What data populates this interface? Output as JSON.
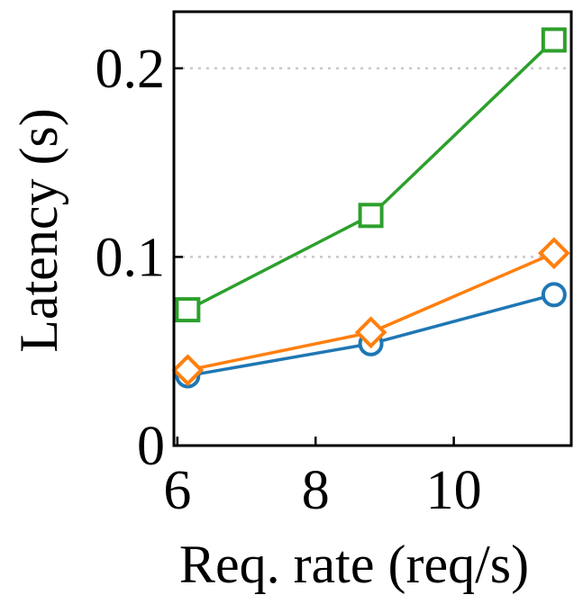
{
  "chart_data": {
    "type": "line",
    "title": "",
    "xlabel": "Req. rate (req/s)",
    "ylabel": "Latency (s)",
    "xlim": [
      5.95,
      11.7
    ],
    "ylim": [
      0,
      0.23
    ],
    "xticks": [
      6,
      8,
      10
    ],
    "xtick_labels": [
      "6",
      "8",
      "10"
    ],
    "yticks": [
      0,
      0.1,
      0.2
    ],
    "ytick_labels": [
      "0",
      "0.1",
      "0.2"
    ],
    "grid": "horizontal dotted at y ticks",
    "legend": "none",
    "series": [
      {
        "name": "series-1",
        "color": "#1f77b4",
        "marker": "circle",
        "x": [
          6.15,
          8.8,
          11.45
        ],
        "y": [
          0.037,
          0.054,
          0.08
        ]
      },
      {
        "name": "series-2",
        "color": "#ff7f0e",
        "marker": "diamond",
        "x": [
          6.15,
          8.8,
          11.45
        ],
        "y": [
          0.04,
          0.06,
          0.102
        ]
      },
      {
        "name": "series-3",
        "color": "#2ca02c",
        "marker": "square",
        "x": [
          6.15,
          8.8,
          11.45
        ],
        "y": [
          0.072,
          0.122,
          0.215
        ]
      }
    ]
  }
}
